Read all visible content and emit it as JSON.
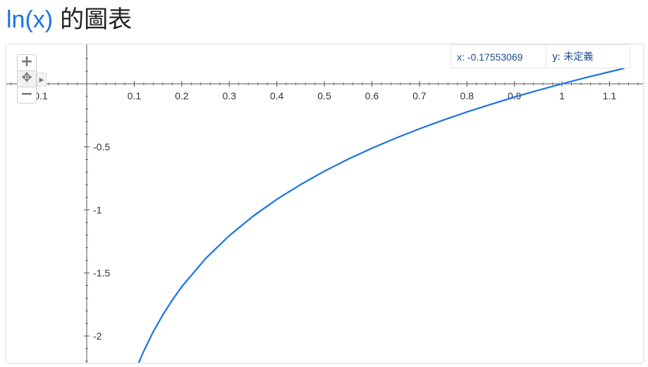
{
  "header": {
    "function_label": "ln(x)",
    "title_suffix": "的圖表"
  },
  "readout": {
    "x_text": "x: -0.17553069",
    "y_text": "y: 未定義"
  },
  "controls": {
    "zoom_in": "+",
    "pan": "✥",
    "zoom_out": "−"
  },
  "colors": {
    "curve": "#1a73e8",
    "title_function": "#1a73e8",
    "axis": "#555555",
    "frame_shadow": "#bbbbbb"
  },
  "chart_data": {
    "type": "line",
    "function": "ln(x)",
    "xlim": [
      -0.1,
      1.15
    ],
    "ylim": [
      -2.2,
      0.1
    ],
    "x_ticks": [
      {
        "value": -0.1,
        "label": "-0.1"
      },
      {
        "value": 0.1,
        "label": "0.1"
      },
      {
        "value": 0.2,
        "label": "0.2"
      },
      {
        "value": 0.3,
        "label": "0.3"
      },
      {
        "value": 0.4,
        "label": "0.4"
      },
      {
        "value": 0.5,
        "label": "0.5"
      },
      {
        "value": 0.6,
        "label": "0.6"
      },
      {
        "value": 0.7,
        "label": "0.7"
      },
      {
        "value": 0.8,
        "label": "0.8"
      },
      {
        "value": 0.9,
        "label": "0.9"
      },
      {
        "value": 1,
        "label": "1"
      },
      {
        "value": 1.1,
        "label": "1.1"
      }
    ],
    "y_ticks": [
      {
        "value": -0.5,
        "label": "-0.5"
      },
      {
        "value": -1,
        "label": "-1"
      },
      {
        "value": -1.5,
        "label": "-1.5"
      },
      {
        "value": -2,
        "label": "-2"
      }
    ],
    "series": [
      {
        "x": [
          0.11,
          0.12,
          0.14,
          0.16,
          0.18,
          0.2,
          0.25,
          0.3,
          0.35,
          0.4,
          0.45,
          0.5,
          0.55,
          0.6,
          0.65,
          0.7,
          0.75,
          0.8,
          0.85,
          0.9,
          0.95,
          1.0,
          1.05,
          1.1,
          1.13
        ],
        "y": [
          -2.207,
          -2.12,
          -1.966,
          -1.833,
          -1.715,
          -1.609,
          -1.386,
          -1.204,
          -1.05,
          -0.916,
          -0.799,
          -0.693,
          -0.598,
          -0.511,
          -0.431,
          -0.357,
          -0.288,
          -0.223,
          -0.163,
          -0.105,
          -0.051,
          0.0,
          0.049,
          0.095,
          0.122
        ]
      }
    ],
    "grid": false
  }
}
